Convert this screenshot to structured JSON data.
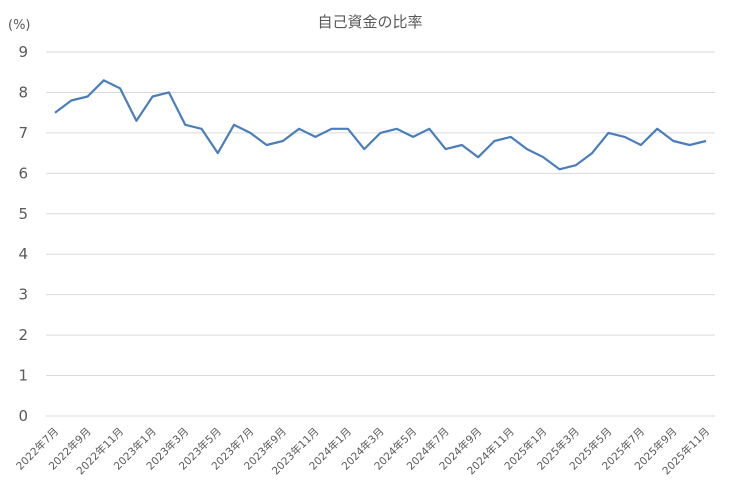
{
  "chart_data": {
    "type": "line",
    "title": "自己資金の比率",
    "ylabel": "(%)",
    "xlabel": "",
    "ylim": [
      0,
      9
    ],
    "yticks": [
      0,
      1,
      2,
      3,
      4,
      5,
      6,
      7,
      8,
      9
    ],
    "grid": true,
    "legend": "none",
    "line_color": "#4a7ebb",
    "grid_color": "#d9d9d9",
    "x": [
      "2022年7月",
      "2022年8月",
      "2022年9月",
      "2022年10月",
      "2022年11月",
      "2022年12月",
      "2023年1月",
      "2023年2月",
      "2023年3月",
      "2023年4月",
      "2023年5月",
      "2023年6月",
      "2023年7月",
      "2023年8月",
      "2023年9月",
      "2023年10月",
      "2023年11月",
      "2023年12月",
      "2024年1月",
      "2024年2月",
      "2024年3月",
      "2024年4月",
      "2024年5月",
      "2024年6月",
      "2024年7月",
      "2024年8月",
      "2024年9月",
      "2024年10月",
      "2024年11月",
      "2024年12月",
      "2025年1月",
      "2025年2月",
      "2025年3月",
      "2025年4月",
      "2025年5月",
      "2025年6月",
      "2025年7月",
      "2025年8月",
      "2025年9月",
      "2025年10月",
      "2025年11月"
    ],
    "xtick_labels": [
      "2022年7月",
      "2022年9月",
      "2022年11月",
      "2023年1月",
      "2023年3月",
      "2023年5月",
      "2023年7月",
      "2023年9月",
      "2023年11月",
      "2024年1月",
      "2024年3月",
      "2024年5月",
      "2024年7月",
      "2024年9月",
      "2024年11月",
      "2025年1月",
      "2025年3月",
      "2025年5月",
      "2025年7月",
      "2025年9月",
      "2025年11月"
    ],
    "series": [
      {
        "values": [
          7.5,
          7.8,
          7.9,
          8.3,
          8.1,
          7.3,
          7.9,
          8.0,
          7.2,
          7.1,
          6.5,
          7.2,
          7.0,
          6.7,
          6.8,
          7.1,
          6.9,
          7.1,
          7.1,
          6.6,
          7.0,
          7.1,
          6.9,
          7.1,
          6.6,
          6.7,
          6.4,
          6.8,
          6.9,
          6.6,
          6.4,
          6.1,
          6.2,
          6.5,
          7.0,
          6.9,
          6.7,
          7.1,
          6.8,
          6.7,
          6.8
        ]
      }
    ]
  }
}
